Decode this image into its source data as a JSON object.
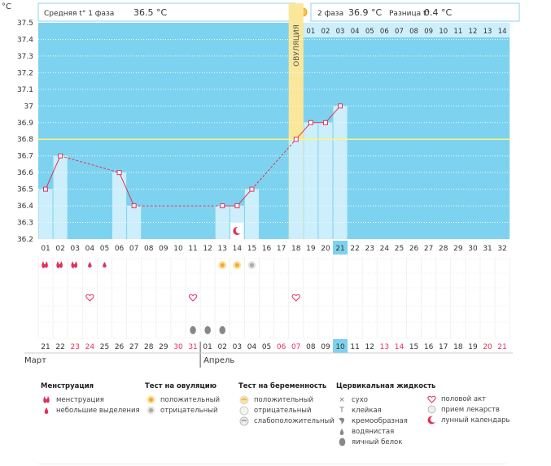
{
  "axis_unit": "°C",
  "header": {
    "phase1_label": "Средняя t° 1 фаза",
    "phase1_value": "36.5 °C",
    "phase2_label": "2 фаза",
    "phase2_value": "36.9 °C",
    "diff_label": "Разница t°",
    "diff_value": "0.4 °C"
  },
  "ovulation_label": "ОВУЛЯЦИЯ",
  "months": {
    "first": "Март",
    "second": "Апрель"
  },
  "colors": {
    "plot_bg": "#7dd3ef",
    "bar": "#cdeefb",
    "line": "#e0315d",
    "coverline": "#fff67a",
    "ovulation": "#fbe79a",
    "weekend": "#e0315d",
    "highlight": "#7dd3ef"
  },
  "chart_data": {
    "type": "line",
    "title": "",
    "ylabel": "°C",
    "ylim": [
      36.2,
      37.5
    ],
    "yticks": [
      "37.5",
      "37.4",
      "37.3",
      "37.2",
      "37.1",
      "37",
      "36.9",
      "36.8",
      "36.7",
      "36.6",
      "36.5",
      "36.4",
      "36.3",
      "36.2"
    ],
    "cycle_days": [
      "01",
      "02",
      "03",
      "04",
      "05",
      "06",
      "07",
      "08",
      "09",
      "10",
      "11",
      "12",
      "13",
      "14",
      "15",
      "16",
      "17",
      "18",
      "19",
      "20",
      "21",
      "22",
      "23",
      "24",
      "25",
      "26",
      "27",
      "28",
      "29",
      "30",
      "31",
      "32"
    ],
    "phase2_days": [
      "01",
      "02",
      "03",
      "04",
      "05",
      "06",
      "07",
      "08",
      "09",
      "10",
      "11",
      "12",
      "13",
      "14"
    ],
    "calendar_dates": [
      "21",
      "22",
      "23",
      "24",
      "25",
      "26",
      "27",
      "28",
      "29",
      "30",
      "31",
      "01",
      "02",
      "03",
      "04",
      "05",
      "06",
      "07",
      "08",
      "09",
      "10",
      "11",
      "12",
      "13",
      "14",
      "15",
      "16",
      "17",
      "18",
      "19",
      "20",
      "21"
    ],
    "weekend_dates": [
      2,
      3,
      9,
      10,
      16,
      17,
      23,
      24,
      30,
      31
    ],
    "highlight_cycle_day": 21,
    "highlight_date_index": 20,
    "ovulation_day": 18,
    "coverline": 36.8,
    "temperatures": [
      {
        "day": 1,
        "temp": 36.5
      },
      {
        "day": 2,
        "temp": 36.7
      },
      {
        "day": 6,
        "temp": 36.6
      },
      {
        "day": 7,
        "temp": 36.4
      },
      {
        "day": 13,
        "temp": 36.4
      },
      {
        "day": 14,
        "temp": 36.4
      },
      {
        "day": 15,
        "temp": 36.5
      },
      {
        "day": 18,
        "temp": 36.8
      },
      {
        "day": 19,
        "temp": 36.9
      },
      {
        "day": 20,
        "temp": 36.9
      },
      {
        "day": 21,
        "temp": 37.0
      }
    ],
    "bar_days": [
      1,
      2,
      6,
      7,
      13,
      14,
      15,
      18,
      19,
      20,
      21
    ],
    "lunar_marker_day": 14,
    "menstruation": [
      {
        "day": 1,
        "type": "heavy"
      },
      {
        "day": 2,
        "type": "heavy"
      },
      {
        "day": 3,
        "type": "heavy"
      },
      {
        "day": 4,
        "type": "light"
      },
      {
        "day": 5,
        "type": "light"
      }
    ],
    "ovulation_tests": [
      {
        "day": 13,
        "type": "positive"
      },
      {
        "day": 14,
        "type": "positive"
      },
      {
        "day": 15,
        "type": "negative"
      }
    ],
    "intercourse_days": [
      4,
      11,
      18
    ],
    "fluid_egg_white_days": [
      11,
      12,
      13
    ]
  },
  "legend": {
    "menstruation": {
      "title": "Менструация",
      "items": [
        "менструация",
        "небольшие выделения"
      ]
    },
    "ovulation_test": {
      "title": "Тест на овуляцию",
      "items": [
        "положительный",
        "отрицательный"
      ]
    },
    "pregnancy_test": {
      "title": "Тест на беременность",
      "items": [
        "положительный",
        "отрицательный",
        "слабоположительный"
      ]
    },
    "cervical_fluid": {
      "title": "Цервикальная жидкость",
      "items": [
        "сухо",
        "клейкая",
        "кремообразная",
        "водянистая",
        "яичный белок"
      ]
    },
    "other": {
      "items": [
        "половой акт",
        "прием лекарств",
        "лунный календарь"
      ]
    }
  }
}
